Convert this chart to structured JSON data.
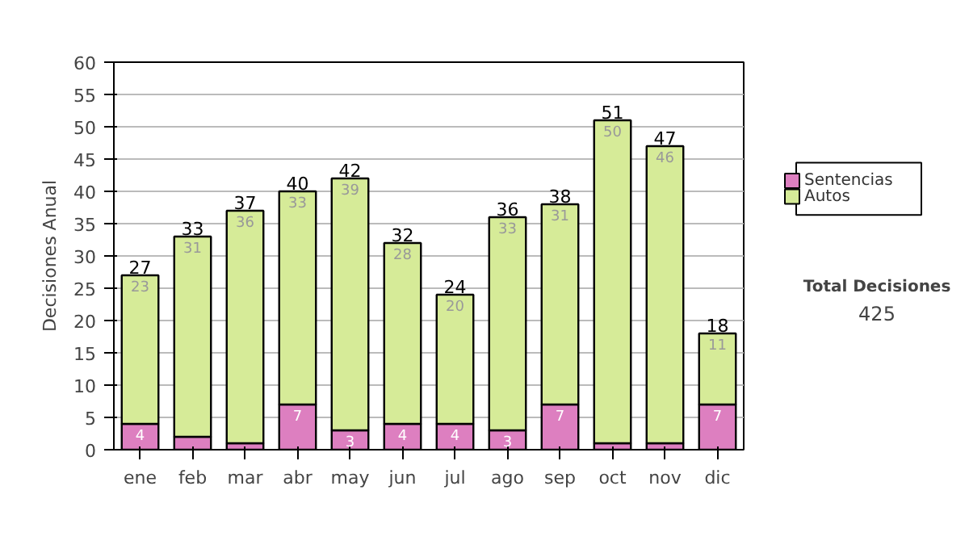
{
  "chart_data": {
    "type": "bar",
    "stacked": true,
    "ylabel": "Decisiones Anual",
    "categories": [
      "ene",
      "feb",
      "mar",
      "abr",
      "may",
      "jun",
      "jul",
      "ago",
      "sep",
      "oct",
      "nov",
      "dic"
    ],
    "series": [
      {
        "name": "Sentencias",
        "color": "#dd7fc0",
        "values": [
          4,
          2,
          1,
          7,
          3,
          4,
          4,
          3,
          7,
          1,
          1,
          7
        ],
        "value_labels": [
          "4",
          null,
          null,
          "7",
          "3",
          "4",
          "4",
          "3",
          "7",
          null,
          null,
          "7"
        ]
      },
      {
        "name": "Autos",
        "color": "#d6eb98",
        "values": [
          23,
          31,
          36,
          33,
          39,
          28,
          20,
          33,
          31,
          50,
          46,
          11
        ],
        "value_labels": [
          "23",
          "31",
          "36",
          "33",
          "39",
          "28",
          "20",
          "33",
          "31",
          "50",
          "46",
          "11"
        ]
      }
    ],
    "totals": [
      "27",
      "33",
      "37",
      "40",
      "42",
      "32",
      "24",
      "36",
      "38",
      "51",
      "47",
      "18"
    ],
    "ylim": [
      0,
      60
    ],
    "yticks": [
      0,
      5,
      10,
      15,
      20,
      25,
      30,
      35,
      40,
      45,
      50,
      55,
      60
    ],
    "grid": "y",
    "legend": "right",
    "annotations": [
      "Total Decisiones",
      "425"
    ]
  }
}
